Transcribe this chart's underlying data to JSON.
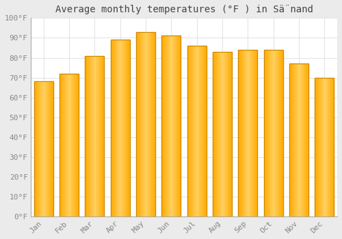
{
  "title": "Average monthly temperatures (°F ) in Sä̈nand",
  "months": [
    "Jan",
    "Feb",
    "Mar",
    "Apr",
    "May",
    "Jun",
    "Jul",
    "Aug",
    "Sep",
    "Oct",
    "Nov",
    "Dec"
  ],
  "values": [
    68,
    72,
    81,
    89,
    93,
    91,
    86,
    83,
    84,
    84,
    77,
    70
  ],
  "bar_color_main": "#FFAA00",
  "bar_color_light": "#FFD060",
  "bar_edge_color": "#CC8800",
  "background_color": "#ebebeb",
  "plot_bg_color": "#ffffff",
  "ylim": [
    0,
    100
  ],
  "yticks": [
    0,
    10,
    20,
    30,
    40,
    50,
    60,
    70,
    80,
    90,
    100
  ],
  "ytick_labels": [
    "0°F",
    "10°F",
    "20°F",
    "30°F",
    "40°F",
    "50°F",
    "60°F",
    "70°F",
    "80°F",
    "90°F",
    "100°F"
  ],
  "grid_color": "#dddddd",
  "title_fontsize": 10,
  "tick_fontsize": 8,
  "tick_color": "#888888",
  "spine_color": "#aaaaaa"
}
